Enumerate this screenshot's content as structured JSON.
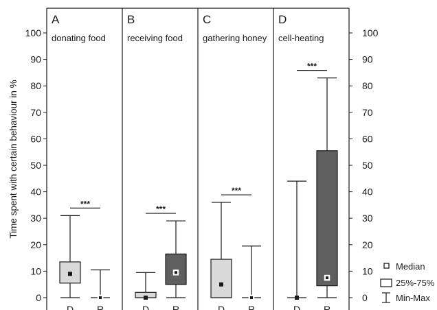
{
  "chart_data": {
    "type": "box",
    "ylabel": "Time spent with certain behaviour in %",
    "ylim": [
      0,
      100
    ],
    "y_ticks": [
      0,
      10,
      20,
      30,
      40,
      50,
      60,
      70,
      80,
      90,
      100
    ],
    "categories": [
      "D",
      "R"
    ],
    "panels": [
      {
        "letter": "A",
        "title": "donating food",
        "significance": "***",
        "boxes": [
          {
            "category": "D",
            "min": 0,
            "q1": 5.5,
            "median": 9,
            "q3": 13.5,
            "max": 31,
            "shade": "light"
          },
          {
            "category": "R",
            "min": 0,
            "q1": 0,
            "median": 0,
            "q3": 0,
            "max": 10.5,
            "shade": "dark"
          }
        ]
      },
      {
        "letter": "B",
        "title": "receiving food",
        "significance": "***",
        "boxes": [
          {
            "category": "D",
            "min": 0,
            "q1": 0,
            "median": 0,
            "q3": 2,
            "max": 9.5,
            "shade": "light"
          },
          {
            "category": "R",
            "min": 0,
            "q1": 5,
            "median": 9.5,
            "q3": 16.5,
            "max": 29,
            "shade": "dark"
          }
        ]
      },
      {
        "letter": "C",
        "title": "gathering honey",
        "significance": "***",
        "boxes": [
          {
            "category": "D",
            "min": 0,
            "q1": 0,
            "median": 5,
            "q3": 14.5,
            "max": 36,
            "shade": "light"
          },
          {
            "category": "R",
            "min": 0,
            "q1": 0,
            "median": 0,
            "q3": 0,
            "max": 19.5,
            "shade": "dark"
          }
        ]
      },
      {
        "letter": "D",
        "title": "cell-heating",
        "significance": "***",
        "boxes": [
          {
            "category": "D",
            "min": 0,
            "q1": 0,
            "median": 0,
            "q3": 0,
            "max": 44,
            "shade": "light"
          },
          {
            "category": "R",
            "min": 0,
            "q1": 4.5,
            "median": 7.5,
            "q3": 55.5,
            "max": 83,
            "shade": "dark"
          }
        ]
      }
    ],
    "legend": {
      "placement": "bottom-right",
      "entries": [
        {
          "label": "Median",
          "symbol": "square"
        },
        {
          "label": "25%-75%",
          "symbol": "box"
        },
        {
          "label": "Min-Max",
          "symbol": "whisker"
        }
      ]
    },
    "colors": {
      "light": "#d9d9d9",
      "dark": "#5f5f5f",
      "line": "#1a1a1a"
    }
  }
}
